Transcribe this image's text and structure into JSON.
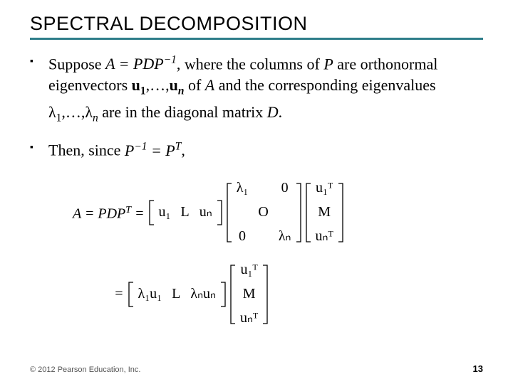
{
  "title": "SPECTRAL DECOMPOSITION",
  "title_fontsize": 27,
  "rule_color": "#2e7d8a",
  "body_fontsize": 22,
  "bullets": [
    {
      "pre": "Suppose ",
      "eq": "A = PDP",
      "eq_sup": "−1",
      "post1": ", where the columns of ",
      "P": "P",
      "post2": " are orthonormal eigenvectors ",
      "u1": "u",
      "u1sub": "1",
      "dots": ",…,",
      "un": "u",
      "unsub": "n",
      "post3": " of ",
      "A": "A",
      "post4": " and the corresponding eigenvalues ",
      "l1": "λ",
      "l1sub": "1",
      "dots2": ",…,",
      "ln": "λ",
      "lnsub": "n",
      "post5": " are in the diagonal matrix ",
      "D": "D",
      "post6": "."
    },
    {
      "pre": "Then, since ",
      "eq": "P",
      "eq_sup": "−1",
      "eq2": " = P",
      "eq2_sup": "T",
      "post": ","
    }
  ],
  "equation": {
    "lhs": "A = PDP",
    "lhs_sup": "T",
    "lhs_post": " = ",
    "P_row": [
      "u₁",
      "L",
      "uₙ"
    ],
    "D": {
      "tl": "λ₁",
      "tr": "0",
      "mid": "O",
      "bl": "0",
      "br": "λₙ"
    },
    "UT": {
      "top": "u₁ᵀ",
      "mid": "M",
      "bot": "uₙᵀ"
    },
    "eq2_pre": "= ",
    "row2": [
      "λ₁u₁",
      "L",
      "λₙuₙ"
    ],
    "UT2": {
      "top": "u₁ᵀ",
      "mid": "M",
      "bot": "uₙᵀ"
    }
  },
  "footer": "© 2012 Pearson Education, Inc.",
  "footer_fontsize": 11,
  "pagenum": "13",
  "pagenum_fontsize": 13,
  "math_fontsize": 20,
  "bracket_height_small": 36,
  "bracket_height_large": 84
}
